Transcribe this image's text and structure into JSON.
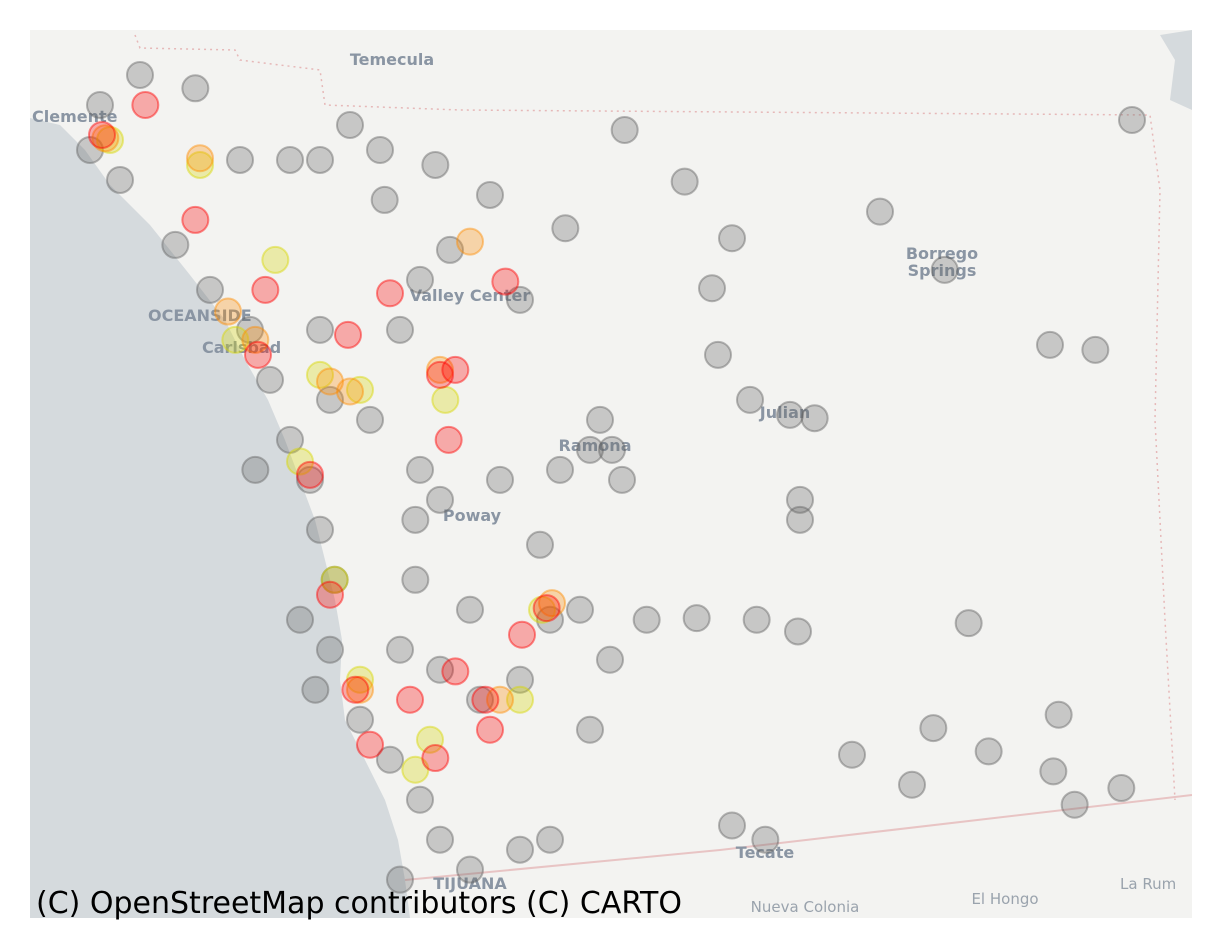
{
  "places": [
    "Temecula",
    "Clemente",
    "OCEANSIDE",
    "Carlsbad",
    "Valley Center",
    "Borrego",
    "Springs",
    "Ramona",
    "Julian",
    "Poway",
    "Tecate",
    "TIJUANA",
    "Nueva Colonia",
    "El Hongo",
    "La Rum"
  ],
  "attribution": "(C) OpenStreetMap contributors (C) CARTO",
  "chart_data": {
    "type": "scatter",
    "xlim": [
      -117.7,
      -115.957
    ],
    "ylim": [
      32.504,
      33.57
    ],
    "series": [
      {
        "color": "#646464",
        "x": [
          -117.535,
          -117.452,
          -117.595,
          -117.61,
          -117.565,
          -117.482,
          -117.43,
          -117.265,
          -117.22,
          -117.168,
          -117.092,
          -117.01,
          -116.897,
          -116.808,
          -116.718,
          -116.647,
          -116.425,
          -116.328,
          -116.047,
          -116.17,
          -116.102,
          -116.677,
          -116.668,
          -116.62,
          -116.56,
          -116.523,
          -116.86,
          -116.845,
          -116.905,
          -116.812,
          -116.545,
          -116.545,
          -116.775,
          -116.7,
          -116.61,
          -116.548,
          -116.292,
          -116.157,
          -116.345,
          -116.262,
          -116.165,
          -116.063,
          -116.133,
          -116.377,
          -116.467,
          -116.647,
          -116.597,
          -117.362,
          -117.31,
          -117.28,
          -117.265,
          -117.243,
          -117.295,
          -117.25,
          -117.272,
          -117.205,
          -117.16,
          -117.115,
          -117.085,
          -117.04,
          -117.145,
          -117.085,
          -117.025,
          -116.965,
          -116.92,
          -116.875,
          -116.83,
          -116.86,
          -117.122,
          -117.122,
          -117.115,
          -117.085,
          -116.995,
          -116.935,
          -117.04,
          -117.265,
          -117.25,
          -117.19,
          -117.145,
          -117.115,
          -117.07,
          -116.965,
          -117.34,
          -117.37,
          -117.385,
          -117.31,
          -117.175,
          -116.965,
          -116.92,
          -117.145,
          -116.827
        ],
        "y": [
          33.516,
          33.5,
          33.48,
          33.426,
          33.39,
          33.312,
          33.258,
          33.414,
          33.456,
          33.366,
          33.408,
          33.372,
          33.332,
          33.45,
          33.388,
          33.32,
          33.352,
          33.282,
          33.462,
          33.192,
          33.186,
          33.26,
          33.18,
          33.126,
          33.108,
          33.104,
          33.066,
          33.102,
          33.042,
          33.03,
          33.006,
          32.982,
          32.862,
          32.864,
          32.862,
          32.848,
          32.858,
          32.748,
          32.732,
          32.704,
          32.68,
          32.66,
          32.64,
          32.664,
          32.7,
          32.615,
          32.598,
          33.042,
          33.078,
          33.03,
          32.97,
          32.91,
          32.862,
          32.826,
          32.778,
          32.742,
          32.694,
          32.646,
          32.598,
          32.562,
          32.826,
          32.802,
          32.766,
          32.79,
          32.862,
          32.874,
          32.814,
          32.73,
          32.91,
          32.982,
          33.042,
          33.006,
          33.03,
          32.952,
          32.874,
          33.21,
          33.126,
          33.102,
          33.21,
          33.27,
          33.306,
          33.246,
          33.15,
          33.21,
          33.414,
          33.414,
          33.426,
          32.586,
          32.598,
          32.55,
          33.066
        ]
      },
      {
        "color": "#d8d800",
        "x": [
          -117.58,
          -117.445,
          -117.332,
          -117.392,
          -117.265,
          -117.205,
          -117.295,
          -117.243,
          -117.077,
          -116.932,
          -117.1,
          -116.965,
          -117.205,
          -117.122
        ],
        "y": [
          33.438,
          33.408,
          33.294,
          33.198,
          33.156,
          33.138,
          33.052,
          32.91,
          33.126,
          32.874,
          32.718,
          32.766,
          32.79,
          32.682
        ]
      },
      {
        "color": "#ff8c00",
        "x": [
          -117.587,
          -117.445,
          -117.04,
          -117.403,
          -117.362,
          -117.25,
          -117.22,
          -116.917,
          -117.205,
          -116.995,
          -117.085
        ],
        "y": [
          33.44,
          33.416,
          33.316,
          33.232,
          33.198,
          33.148,
          33.136,
          32.882,
          32.778,
          32.766,
          33.162
        ]
      },
      {
        "color": "#ff0000",
        "x": [
          -117.527,
          -117.452,
          -117.347,
          -117.223,
          -117.16,
          -116.987,
          -117.085,
          -117.062,
          -117.072,
          -117.28,
          -117.25,
          -116.962,
          -117.212,
          -117.13,
          -117.062,
          -117.01,
          -117.017,
          -117.19,
          -117.092,
          -117.592,
          -117.358,
          -116.925
        ],
        "y": [
          33.48,
          33.342,
          33.258,
          33.204,
          33.254,
          33.268,
          33.156,
          33.162,
          33.078,
          33.036,
          32.892,
          32.844,
          32.778,
          32.766,
          32.8,
          32.73,
          32.766,
          32.712,
          32.696,
          33.444,
          33.18,
          32.876
        ]
      }
    ]
  }
}
